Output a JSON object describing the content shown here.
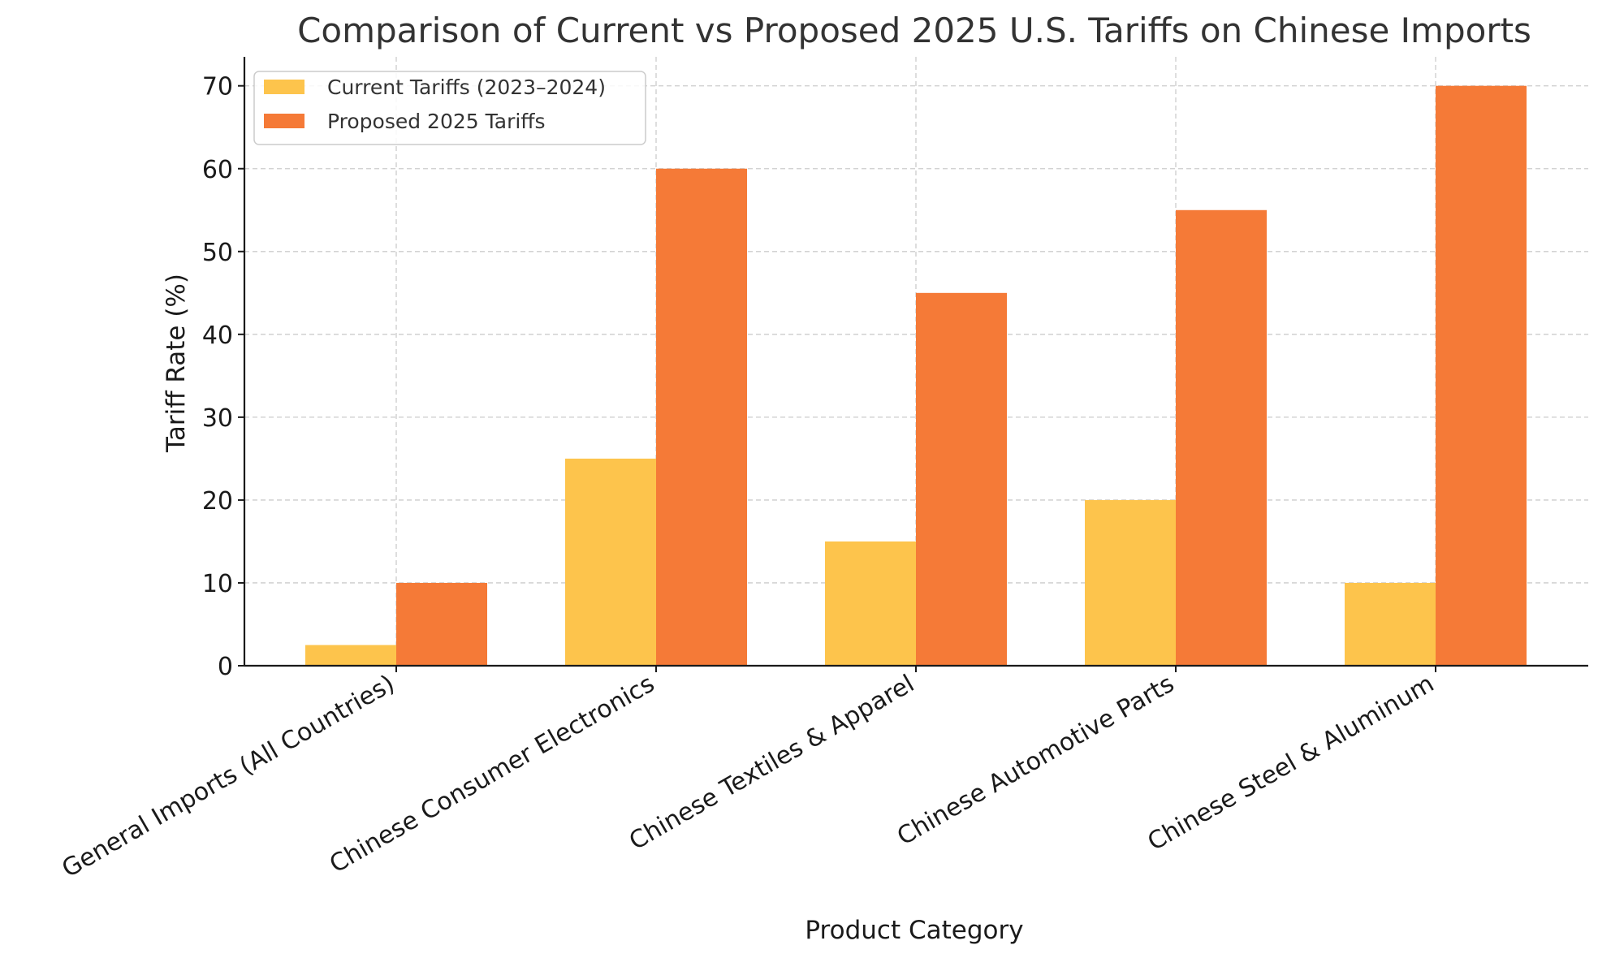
{
  "chart_data": {
    "type": "bar",
    "title": "Comparison of Current vs Proposed 2025 U.S. Tariffs on Chinese Imports",
    "xlabel": "Product Category",
    "ylabel": "Tariff Rate (%)",
    "categories": [
      "General Imports (All Countries)",
      "Chinese Consumer Electronics",
      "Chinese Textiles & Apparel",
      "Chinese Automotive Parts",
      "Chinese Steel & Aluminum"
    ],
    "series": [
      {
        "name": "Current Tariffs (2023–2024)",
        "color": "#FDC44C",
        "values": [
          2.5,
          25,
          15,
          20,
          10
        ]
      },
      {
        "name": "Proposed 2025 Tariffs",
        "color": "#F57A37",
        "values": [
          10,
          60,
          45,
          55,
          70
        ]
      }
    ],
    "ylim": [
      0,
      73.5
    ],
    "yticks": [
      0,
      10,
      20,
      30,
      40,
      50,
      60,
      70
    ],
    "grid": true,
    "legend_position": "top-left"
  }
}
